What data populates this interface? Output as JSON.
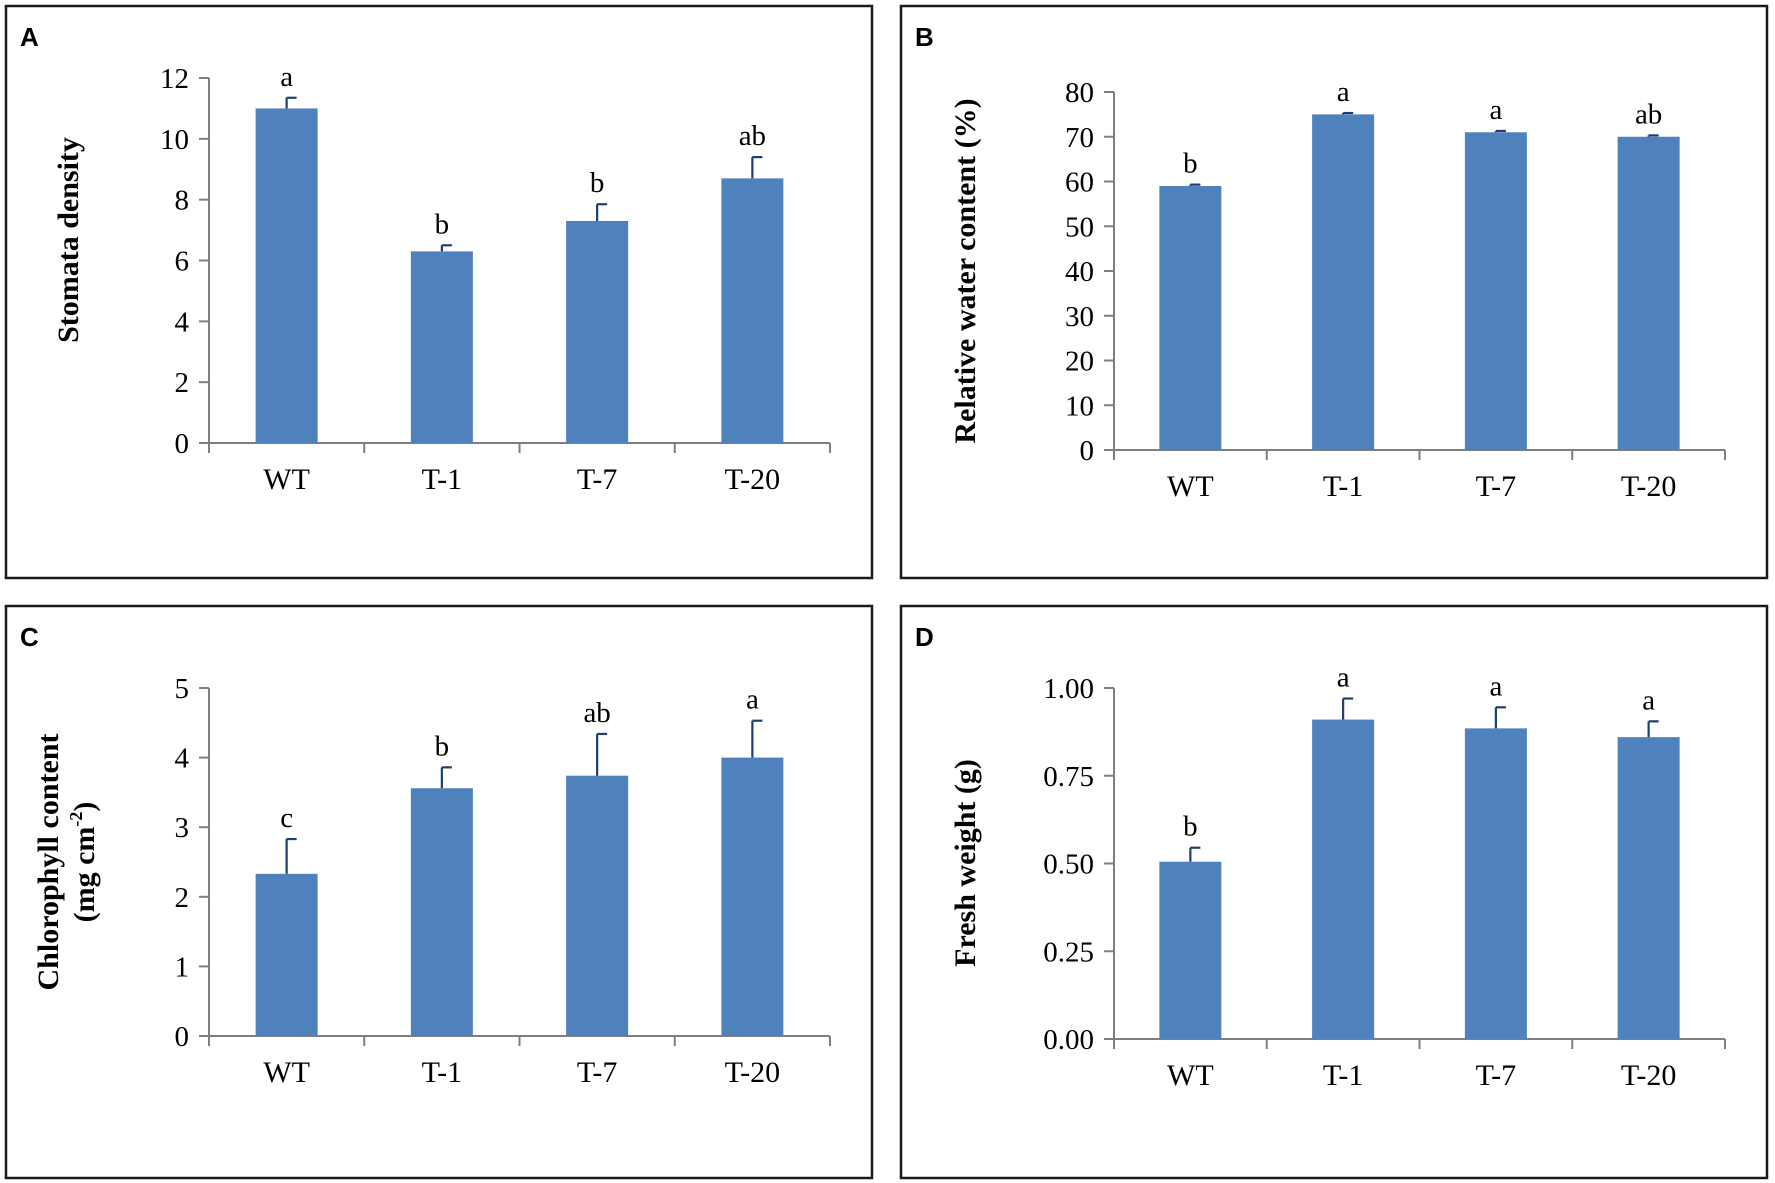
{
  "figure": {
    "bar_color": "#4f81bd",
    "error_color": "#1f3f6f",
    "frame_color": "#1a1a1a"
  },
  "chart_data": [
    {
      "panel": "A",
      "type": "bar",
      "title": "",
      "xlabel": "",
      "ylabel": "Stomata density",
      "ylabel_lines": [
        "Stomata density"
      ],
      "categories": [
        "WT",
        "T-1",
        "T-7",
        "T-20"
      ],
      "values": [
        11.0,
        6.3,
        7.3,
        8.7
      ],
      "errors": [
        0.35,
        0.2,
        0.55,
        0.7
      ],
      "significance": [
        "a",
        "b",
        "b",
        "ab"
      ],
      "ylim": [
        0,
        12
      ],
      "yticks": [
        0,
        2,
        4,
        6,
        8,
        10,
        12
      ],
      "ytick_labels": [
        "0",
        "2",
        "4",
        "6",
        "8",
        "10",
        "12"
      ],
      "grid": false
    },
    {
      "panel": "B",
      "type": "bar",
      "title": "",
      "xlabel": "",
      "ylabel": "Relative water content (%)",
      "ylabel_lines": [
        "Relative water content (%)"
      ],
      "categories": [
        "WT",
        "T-1",
        "T-7",
        "T-20"
      ],
      "values": [
        59.0,
        75.0,
        71.0,
        70.0
      ],
      "errors": [
        0.3,
        0.3,
        0.3,
        0.3
      ],
      "significance": [
        "b",
        "a",
        "a",
        "ab"
      ],
      "ylim": [
        0,
        80
      ],
      "yticks": [
        0,
        10,
        20,
        30,
        40,
        50,
        60,
        70,
        80
      ],
      "ytick_labels": [
        "0",
        "10",
        "20",
        "30",
        "40",
        "50",
        "60",
        "70",
        "80"
      ],
      "grid": false
    },
    {
      "panel": "C",
      "type": "bar",
      "title": "",
      "xlabel": "",
      "ylabel": "Chlorophyll content (mg cm-2)",
      "ylabel_lines": [
        "Chlorophyll content",
        "(mg cm",
        "-2",
        ")"
      ],
      "categories": [
        "WT",
        "T-1",
        "T-7",
        "T-20"
      ],
      "values": [
        2.33,
        3.56,
        3.74,
        4.0
      ],
      "errors": [
        0.5,
        0.3,
        0.6,
        0.53
      ],
      "significance": [
        "c",
        "b",
        "ab",
        "a"
      ],
      "ylim": [
        0,
        5
      ],
      "yticks": [
        0,
        1,
        2,
        3,
        4,
        5
      ],
      "ytick_labels": [
        "0",
        "1",
        "2",
        "3",
        "4",
        "5"
      ],
      "grid": false
    },
    {
      "panel": "D",
      "type": "bar",
      "title": "",
      "xlabel": "",
      "ylabel": "Fresh weight (g)",
      "ylabel_lines": [
        "Fresh weight (g)"
      ],
      "categories": [
        "WT",
        "T-1",
        "T-7",
        "T-20"
      ],
      "values": [
        0.505,
        0.91,
        0.885,
        0.86
      ],
      "errors": [
        0.04,
        0.06,
        0.06,
        0.045
      ],
      "significance": [
        "b",
        "a",
        "a",
        "a"
      ],
      "ylim": [
        0,
        1.0
      ],
      "yticks": [
        0,
        0.25,
        0.5,
        0.75,
        1.0
      ],
      "ytick_labels": [
        "0.00",
        "0.25",
        "0.50",
        "0.75",
        "1.00"
      ],
      "grid": false
    }
  ]
}
